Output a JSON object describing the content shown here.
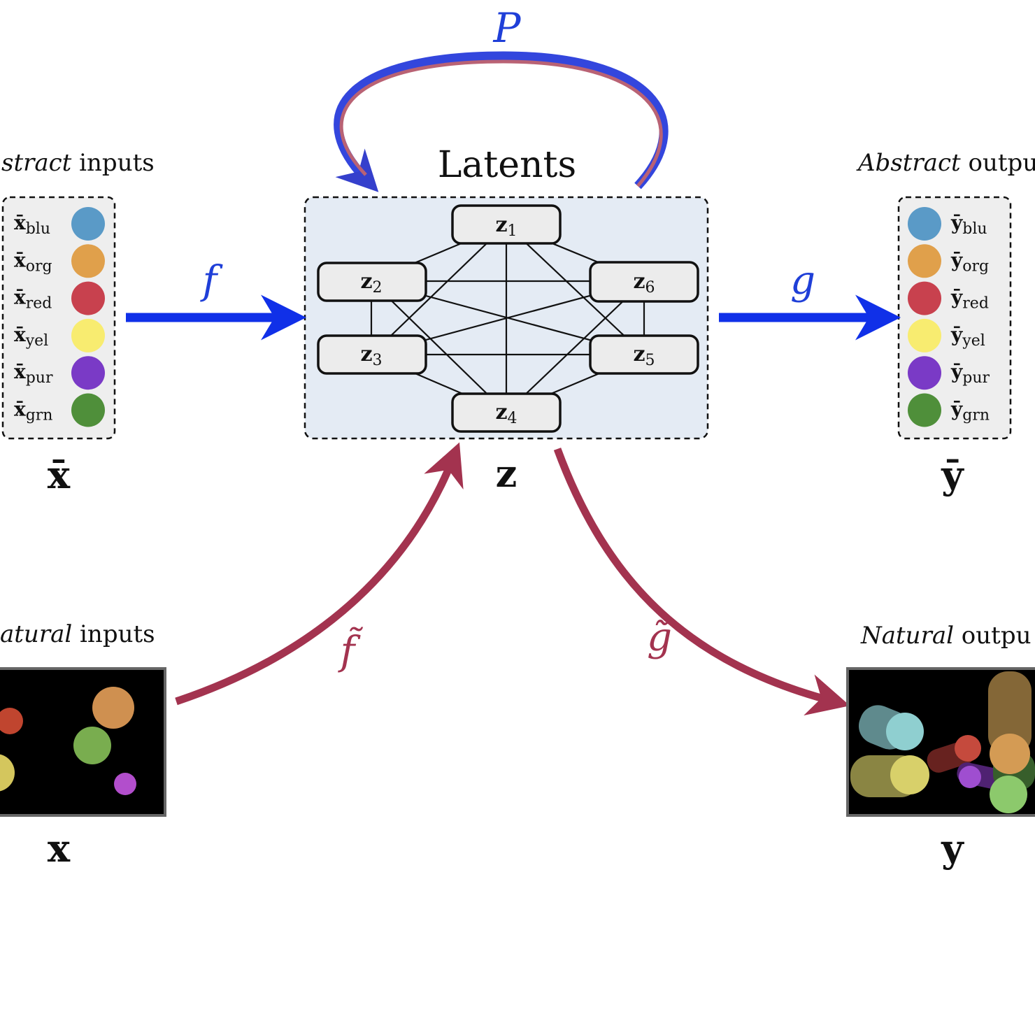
{
  "title": "Latents",
  "loop_label": "P",
  "abstract_inputs": {
    "heading_italic": "stract",
    "heading_rest": " inputs",
    "symbol": "x̄",
    "items": [
      {
        "base": "x̄",
        "sub": "blu",
        "color": "#5a9ac7"
      },
      {
        "base": "x̄",
        "sub": "org",
        "color": "#e0a04b"
      },
      {
        "base": "x̄",
        "sub": "red",
        "color": "#c8414e"
      },
      {
        "base": "x̄",
        "sub": "yel",
        "color": "#f8ec70"
      },
      {
        "base": "x̄",
        "sub": "pur",
        "color": "#7a3ac6"
      },
      {
        "base": "x̄",
        "sub": "grn",
        "color": "#4f8f3a"
      }
    ]
  },
  "abstract_outputs": {
    "heading_italic": "Abstract",
    "heading_rest": " outpu",
    "symbol": "ȳ",
    "items": [
      {
        "base": "ȳ",
        "sub": "blu",
        "color": "#5a9ac7"
      },
      {
        "base": "ȳ",
        "sub": "org",
        "color": "#e0a04b"
      },
      {
        "base": "ȳ",
        "sub": "red",
        "color": "#c8414e"
      },
      {
        "base": "ȳ",
        "sub": "yel",
        "color": "#f8ec70"
      },
      {
        "base": "ȳ",
        "sub": "pur",
        "color": "#7a3ac6"
      },
      {
        "base": "ȳ",
        "sub": "grn",
        "color": "#4f8f3a"
      }
    ]
  },
  "natural_inputs": {
    "heading_italic": "atural",
    "heading_rest": " inputs",
    "symbol": "x"
  },
  "natural_outputs": {
    "heading_italic": "Natural",
    "heading_rest": " outpu",
    "symbol": "y"
  },
  "latent_symbol": "z",
  "nodes": [
    {
      "base": "z",
      "sub": "1"
    },
    {
      "base": "z",
      "sub": "2"
    },
    {
      "base": "z",
      "sub": "6"
    },
    {
      "base": "z",
      "sub": "3"
    },
    {
      "base": "z",
      "sub": "5"
    },
    {
      "base": "z",
      "sub": "4"
    }
  ],
  "arrows": {
    "f": "f",
    "g": "g",
    "f_tilde": "f̃",
    "g_tilde": "g̃"
  },
  "colors": {
    "blue": "#1030e8",
    "red": "#a3334f",
    "latent_bg": "#e4ebf4",
    "box_bg": "#eeeeee"
  }
}
